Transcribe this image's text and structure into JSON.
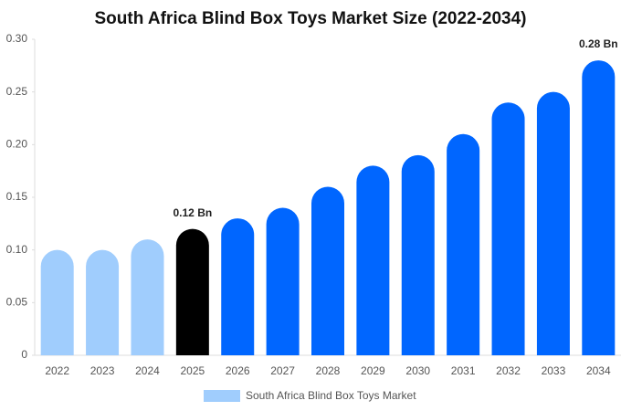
{
  "chart_data": {
    "type": "bar",
    "title": "South Africa Blind Box Toys Market Size (2022-2034)",
    "categories": [
      "2022",
      "2023",
      "2024",
      "2025",
      "2026",
      "2027",
      "2028",
      "2029",
      "2030",
      "2031",
      "2032",
      "2033",
      "2034"
    ],
    "series": [
      {
        "name": "South Africa Blind Box Toys Market",
        "color": "#a0cdfd",
        "values": [
          0.1,
          0.1,
          0.11,
          0.12,
          0.13,
          0.14,
          0.16,
          0.18,
          0.19,
          0.21,
          0.24,
          0.25,
          0.28
        ],
        "value_labels": [
          null,
          null,
          null,
          "0.12 Bn",
          null,
          null,
          null,
          null,
          null,
          null,
          null,
          null,
          "0.28 Bn"
        ],
        "colors": [
          "#a0cdfd",
          "#a0cdfd",
          "#a0cdfd",
          "#000000",
          "#0066ff",
          "#0066ff",
          "#0066ff",
          "#0066ff",
          "#0066ff",
          "#0066ff",
          "#0066ff",
          "#0066ff",
          "#0066ff"
        ]
      }
    ],
    "ylim": [
      0,
      0.3
    ],
    "yticks": [
      0,
      0.05,
      {
        "value": 0.1,
        "label": "0.10"
      },
      0.15,
      {
        "value": 0.2,
        "label": "0.20"
      },
      0.25,
      {
        "value": 0.3,
        "label": "0.30"
      }
    ],
    "legend": "bottom"
  }
}
